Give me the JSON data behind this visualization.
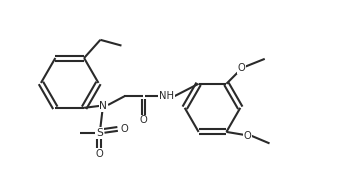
{
  "bg_color": "#ffffff",
  "line_color": "#2a2a2a",
  "line_width": 1.5,
  "font_size": 7.2,
  "fig_width": 3.56,
  "fig_height": 1.86,
  "dpi": 100,
  "xlim": [
    0.1,
    3.8
  ],
  "ylim": [
    0.0,
    1.55
  ]
}
